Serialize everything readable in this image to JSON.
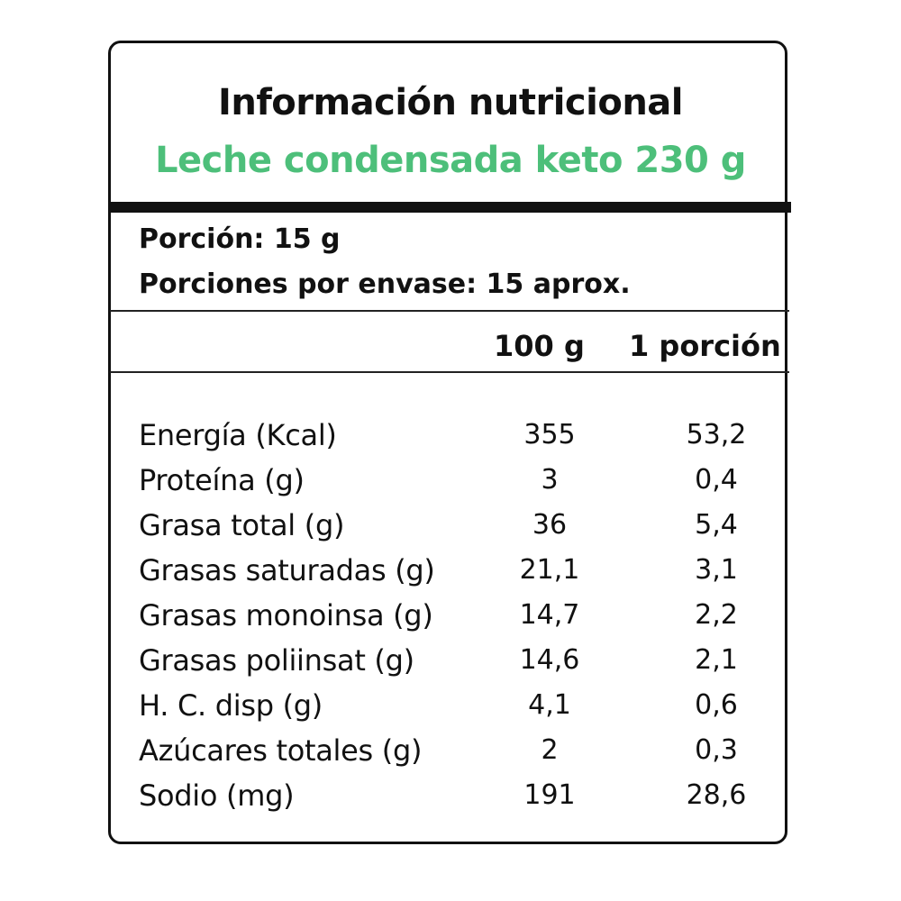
{
  "header": {
    "title": "Información nutricional",
    "product": "Leche condensada keto 230 g"
  },
  "colors": {
    "text": "#111111",
    "accent": "#4dbf7a",
    "border": "#111111"
  },
  "serving": {
    "portion": "Porción: 15 g",
    "portions_per_pack": "Porciones por envase: 15 aprox."
  },
  "table": {
    "columns": [
      "100 g",
      "1 porción"
    ],
    "rows": [
      {
        "name": "Energía (Kcal)",
        "per100": "355",
        "perPortion": "53,2"
      },
      {
        "name": "Proteína (g)",
        "per100": "3",
        "perPortion": "0,4"
      },
      {
        "name": "Grasa total (g)",
        "per100": "36",
        "perPortion": "5,4"
      },
      {
        "name": "Grasas saturadas (g)",
        "per100": "21,1",
        "perPortion": "3,1"
      },
      {
        "name": "Grasas monoinsa (g)",
        "per100": "14,7",
        "perPortion": "2,2"
      },
      {
        "name": "Grasas poliinsat (g)",
        "per100": "14,6",
        "perPortion": "2,1"
      },
      {
        "name": "H. C. disp (g)",
        "per100": "4,1",
        "perPortion": "0,6"
      },
      {
        "name": "Azúcares totales (g)",
        "per100": "2",
        "perPortion": "0,3"
      },
      {
        "name": "Sodio (mg)",
        "per100": "191",
        "perPortion": "28,6"
      }
    ]
  }
}
